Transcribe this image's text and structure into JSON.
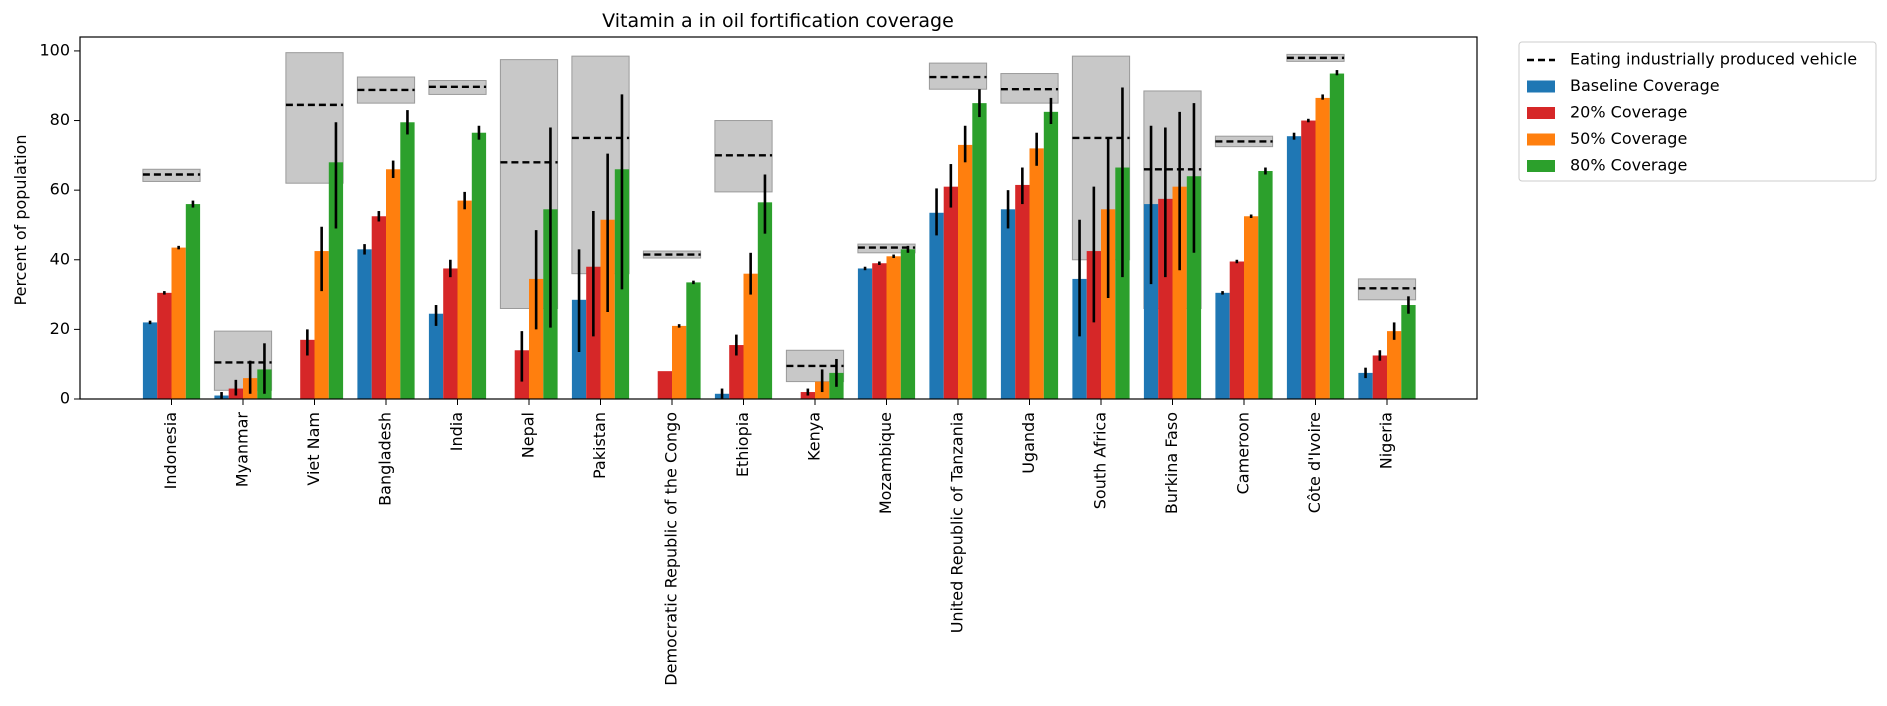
{
  "chart_data": {
    "type": "bar",
    "title": "Vitamin a in oil fortification coverage",
    "xlabel": "",
    "ylabel": "Percent of population",
    "ylim": [
      0,
      104
    ],
    "yticks": [
      0,
      20,
      40,
      60,
      80,
      100
    ],
    "grid": false,
    "legend_position": "outside-top-right",
    "categories": [
      "Indonesia",
      "Myanmar",
      "Viet Nam",
      "Bangladesh",
      "India",
      "Nepal",
      "Pakistan",
      "Democratic Republic of the Congo",
      "Ethiopia",
      "Kenya",
      "Mozambique",
      "United Republic of Tanzania",
      "Uganda",
      "South Africa",
      "Burkina Faso",
      "Cameroon",
      "Côte d'Ivoire",
      "Nigeria"
    ],
    "reference": {
      "name": "Eating industrially produced vehicle",
      "color": "#000000",
      "band_color": "#c8c8c8",
      "values": [
        64.5,
        10.5,
        84.5,
        88.8,
        89.7,
        68,
        75,
        41.5,
        70,
        9.5,
        43.5,
        92.5,
        89,
        75,
        66,
        74,
        98,
        31.8
      ],
      "lower": [
        62.5,
        2.5,
        62,
        85,
        87.5,
        26,
        36,
        40.5,
        59.5,
        5,
        42,
        89,
        85,
        40,
        26,
        72.5,
        97,
        28.5
      ],
      "upper": [
        66,
        19.5,
        99.5,
        92.5,
        91.5,
        97.5,
        98.5,
        42.5,
        80,
        14,
        44.5,
        96.5,
        93.5,
        98.5,
        88.5,
        75.5,
        99,
        34.5
      ]
    },
    "series": [
      {
        "name": "Baseline Coverage",
        "color": "#1f77b4",
        "values": [
          22,
          1,
          0,
          43,
          24.5,
          0,
          28.5,
          0,
          1.5,
          0,
          37.5,
          53.5,
          54.5,
          34.5,
          56,
          30.5,
          75.5,
          7.5
        ],
        "lower": [
          21.5,
          0,
          0,
          41.5,
          21,
          0,
          13.5,
          0,
          0,
          0,
          37,
          47,
          49,
          18,
          33,
          30,
          74.5,
          6
        ],
        "upper": [
          22.5,
          2,
          0,
          44.5,
          27,
          0,
          43,
          0,
          3,
          0,
          38,
          60.5,
          60,
          51.5,
          78.5,
          31,
          76.5,
          9
        ]
      },
      {
        "name": "20% Coverage",
        "color": "#d62728",
        "values": [
          30.5,
          3,
          17,
          52.5,
          37.5,
          14,
          38,
          8,
          15.5,
          2,
          39,
          61,
          61.5,
          42.5,
          57.5,
          39.5,
          80,
          12.5
        ],
        "lower": [
          30,
          1,
          12.5,
          51,
          35,
          5,
          18,
          8,
          12.5,
          1,
          38.5,
          55,
          56,
          22,
          35,
          39,
          79.5,
          11
        ],
        "upper": [
          31,
          5.5,
          20,
          54,
          40,
          19.5,
          54,
          8,
          18.5,
          3,
          39.5,
          67.5,
          66.5,
          61,
          78,
          40,
          80.5,
          14
        ]
      },
      {
        "name": "50% Coverage",
        "color": "#ff7f0e",
        "values": [
          43.5,
          6,
          42.5,
          66,
          57,
          34.5,
          51.5,
          21,
          36,
          5,
          41,
          73,
          72,
          54.5,
          61,
          52.5,
          86.5,
          19.5
        ],
        "lower": [
          43,
          1.5,
          31,
          63.5,
          54.5,
          20,
          25,
          20.5,
          30,
          2,
          40.5,
          68,
          67,
          29,
          37,
          52,
          86,
          17
        ],
        "upper": [
          44,
          11,
          49.5,
          68.5,
          59.5,
          48.5,
          70.5,
          21.5,
          42,
          8.5,
          41.5,
          78.5,
          76.5,
          75,
          82.5,
          53,
          87.5,
          22
        ]
      },
      {
        "name": "80% Coverage",
        "color": "#2ca02c",
        "values": [
          56,
          8.5,
          68,
          79.5,
          76.5,
          54.5,
          66,
          33.5,
          56.5,
          7.5,
          43,
          85,
          82.5,
          66.5,
          64,
          65.5,
          93.5,
          27
        ],
        "lower": [
          55,
          1.5,
          49,
          76,
          74.5,
          20.5,
          31.5,
          33,
          47.5,
          3.5,
          42,
          81,
          79,
          35,
          42,
          64.5,
          93,
          24.5
        ],
        "upper": [
          57,
          16,
          79.5,
          83,
          78.5,
          78,
          87.5,
          34,
          64.5,
          11.5,
          44,
          89,
          86.5,
          89.5,
          85,
          66.5,
          94.5,
          29.5
        ]
      }
    ]
  }
}
